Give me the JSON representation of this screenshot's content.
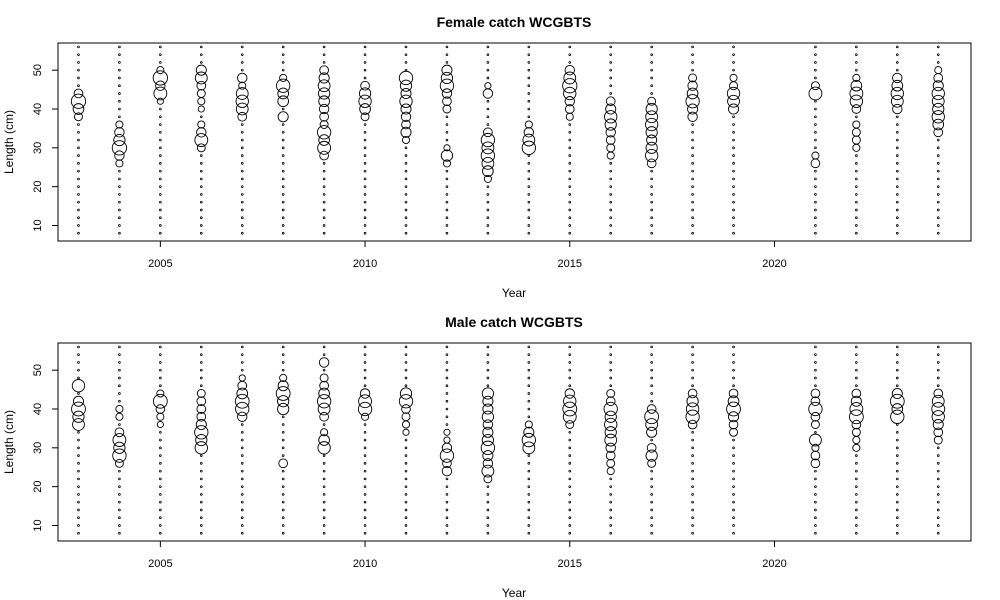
{
  "colors": {
    "ink": "#000000",
    "background": "#ffffff"
  },
  "chart_data": [
    {
      "type": "scatter",
      "subtype": "bubble",
      "title": "Female catch WCGBTS",
      "xlabel": "Year",
      "ylabel": "Length (cm)",
      "xlim": [
        2002.5,
        2024.8
      ],
      "ylim": [
        6,
        57
      ],
      "xticks": [
        2005,
        2010,
        2015,
        2020
      ],
      "yticks": [
        10,
        20,
        30,
        40,
        50
      ],
      "years": [
        2003,
        2004,
        2005,
        2006,
        2007,
        2008,
        2009,
        2010,
        2011,
        2012,
        2013,
        2014,
        2015,
        2016,
        2017,
        2018,
        2019,
        2021,
        2022,
        2023,
        2024
      ],
      "length_bins": [
        8,
        10,
        12,
        14,
        16,
        18,
        20,
        22,
        24,
        26,
        28,
        30,
        32,
        34,
        36,
        38,
        40,
        42,
        44,
        46,
        48,
        50,
        52,
        54,
        56
      ],
      "proportions": [
        {
          "year": 2003,
          "values": {
            "38": 0.25,
            "40": 0.45,
            "42": 0.8,
            "44": 0.3
          }
        },
        {
          "year": 2004,
          "values": {
            "26": 0.2,
            "28": 0.35,
            "30": 0.8,
            "32": 0.5,
            "34": 0.35,
            "36": 0.2
          }
        },
        {
          "year": 2005,
          "values": {
            "42": 0.15,
            "44": 0.65,
            "46": 0.35,
            "48": 0.8,
            "50": 0.2
          }
        },
        {
          "year": 2006,
          "values": {
            "30": 0.25,
            "32": 0.65,
            "34": 0.35,
            "36": 0.2,
            "40": 0.15,
            "42": 0.2,
            "44": 0.25,
            "46": 0.3,
            "48": 0.55,
            "50": 0.4
          }
        },
        {
          "year": 2007,
          "values": {
            "38": 0.3,
            "40": 0.55,
            "42": 0.6,
            "44": 0.55,
            "46": 0.2,
            "48": 0.35
          }
        },
        {
          "year": 2008,
          "values": {
            "38": 0.4,
            "42": 0.45,
            "44": 0.45,
            "46": 0.7,
            "48": 0.2
          }
        },
        {
          "year": 2009,
          "values": {
            "28": 0.3,
            "30": 0.65,
            "32": 0.45,
            "34": 0.7,
            "36": 0.25,
            "38": 0.3,
            "40": 0.35,
            "42": 0.45,
            "44": 0.5,
            "46": 0.55,
            "48": 0.4,
            "50": 0.3
          }
        },
        {
          "year": 2010,
          "values": {
            "38": 0.25,
            "40": 0.45,
            "42": 0.6,
            "44": 0.5,
            "46": 0.3
          }
        },
        {
          "year": 2011,
          "values": {
            "32": 0.2,
            "34": 0.4,
            "36": 0.3,
            "38": 0.35,
            "40": 0.4,
            "42": 0.6,
            "44": 0.4,
            "46": 0.5,
            "48": 0.7
          }
        },
        {
          "year": 2012,
          "values": {
            "26": 0.2,
            "28": 0.5,
            "30": 0.15,
            "40": 0.25,
            "42": 0.3,
            "44": 0.35,
            "46": 0.7,
            "48": 0.5,
            "50": 0.4
          }
        },
        {
          "year": 2013,
          "values": {
            "22": 0.2,
            "24": 0.45,
            "26": 0.55,
            "28": 0.7,
            "30": 0.55,
            "32": 0.7,
            "34": 0.3,
            "44": 0.35,
            "46": 0.15
          }
        },
        {
          "year": 2014,
          "values": {
            "30": 0.7,
            "32": 0.55,
            "34": 0.35,
            "36": 0.2
          }
        },
        {
          "year": 2015,
          "values": {
            "38": 0.2,
            "40": 0.3,
            "42": 0.35,
            "44": 0.6,
            "46": 0.8,
            "48": 0.55,
            "50": 0.35
          }
        },
        {
          "year": 2016,
          "values": {
            "28": 0.2,
            "30": 0.25,
            "32": 0.3,
            "34": 0.35,
            "36": 0.5,
            "38": 0.6,
            "40": 0.4,
            "42": 0.3
          }
        },
        {
          "year": 2017,
          "values": {
            "26": 0.3,
            "28": 0.6,
            "30": 0.5,
            "32": 0.4,
            "34": 0.5,
            "36": 0.6,
            "38": 0.55,
            "40": 0.5,
            "42": 0.25
          }
        },
        {
          "year": 2018,
          "values": {
            "38": 0.35,
            "40": 0.4,
            "42": 0.7,
            "44": 0.45,
            "46": 0.35,
            "48": 0.25
          }
        },
        {
          "year": 2019,
          "values": {
            "40": 0.4,
            "42": 0.55,
            "44": 0.6,
            "46": 0.25,
            "48": 0.2
          }
        },
        {
          "year": 2021,
          "values": {
            "26": 0.3,
            "28": 0.2,
            "44": 0.65,
            "46": 0.25
          }
        },
        {
          "year": 2022,
          "values": {
            "30": 0.2,
            "32": 0.25,
            "34": 0.25,
            "36": 0.2,
            "40": 0.3,
            "42": 0.6,
            "44": 0.65,
            "46": 0.45,
            "48": 0.2
          }
        },
        {
          "year": 2023,
          "values": {
            "40": 0.35,
            "42": 0.55,
            "44": 0.6,
            "46": 0.45,
            "48": 0.35
          }
        },
        {
          "year": 2024,
          "values": {
            "34": 0.3,
            "36": 0.45,
            "38": 0.6,
            "40": 0.5,
            "42": 0.55,
            "44": 0.6,
            "46": 0.4,
            "48": 0.3,
            "50": 0.2
          }
        }
      ]
    },
    {
      "type": "scatter",
      "subtype": "bubble",
      "title": "Male catch WCGBTS",
      "xlabel": "Year",
      "ylabel": "Length (cm)",
      "xlim": [
        2002.5,
        2024.8
      ],
      "ylim": [
        6,
        57
      ],
      "xticks": [
        2005,
        2010,
        2015,
        2020
      ],
      "yticks": [
        10,
        20,
        30,
        40,
        50
      ],
      "years": [
        2003,
        2004,
        2005,
        2006,
        2007,
        2008,
        2009,
        2010,
        2011,
        2012,
        2013,
        2014,
        2015,
        2016,
        2017,
        2018,
        2019,
        2021,
        2022,
        2023,
        2024
      ],
      "length_bins": [
        8,
        10,
        12,
        14,
        16,
        18,
        20,
        22,
        24,
        26,
        28,
        30,
        32,
        34,
        36,
        38,
        40,
        42,
        44,
        46,
        48,
        50,
        52,
        54,
        56
      ],
      "proportions": [
        {
          "year": 2003,
          "values": {
            "36": 0.55,
            "38": 0.5,
            "40": 0.75,
            "42": 0.4,
            "46": 0.6
          }
        },
        {
          "year": 2004,
          "values": {
            "26": 0.25,
            "28": 0.7,
            "30": 0.5,
            "32": 0.65,
            "34": 0.3,
            "38": 0.2,
            "40": 0.2
          }
        },
        {
          "year": 2005,
          "values": {
            "36": 0.15,
            "38": 0.2,
            "40": 0.3,
            "42": 0.75,
            "44": 0.2
          }
        },
        {
          "year": 2006,
          "values": {
            "30": 0.6,
            "32": 0.5,
            "34": 0.7,
            "36": 0.4,
            "38": 0.3,
            "40": 0.3,
            "42": 0.3,
            "44": 0.25
          }
        },
        {
          "year": 2007,
          "values": {
            "38": 0.35,
            "40": 0.7,
            "42": 0.75,
            "44": 0.45,
            "46": 0.3,
            "48": 0.15
          }
        },
        {
          "year": 2008,
          "values": {
            "26": 0.3,
            "40": 0.5,
            "42": 0.5,
            "44": 0.75,
            "46": 0.4,
            "48": 0.2
          }
        },
        {
          "year": 2009,
          "values": {
            "30": 0.6,
            "32": 0.45,
            "34": 0.2,
            "38": 0.3,
            "40": 0.55,
            "42": 0.7,
            "44": 0.45,
            "46": 0.3,
            "48": 0.25,
            "52": 0.35
          }
        },
        {
          "year": 2010,
          "values": {
            "38": 0.2,
            "40": 0.7,
            "42": 0.65,
            "44": 0.35
          }
        },
        {
          "year": 2011,
          "values": {
            "34": 0.15,
            "36": 0.2,
            "38": 0.25,
            "40": 0.3,
            "42": 0.7,
            "44": 0.5
          }
        },
        {
          "year": 2012,
          "values": {
            "24": 0.35,
            "26": 0.3,
            "28": 0.7,
            "30": 0.35,
            "32": 0.15,
            "34": 0.15
          }
        },
        {
          "year": 2013,
          "values": {
            "22": 0.25,
            "24": 0.55,
            "26": 0.35,
            "28": 0.4,
            "30": 0.7,
            "32": 0.5,
            "34": 0.4,
            "36": 0.35,
            "38": 0.5,
            "40": 0.4,
            "42": 0.4,
            "44": 0.5
          }
        },
        {
          "year": 2014,
          "values": {
            "30": 0.55,
            "32": 0.7,
            "34": 0.4,
            "36": 0.2
          }
        },
        {
          "year": 2015,
          "values": {
            "36": 0.25,
            "38": 0.65,
            "40": 0.75,
            "42": 0.6,
            "44": 0.35
          }
        },
        {
          "year": 2016,
          "values": {
            "24": 0.2,
            "26": 0.25,
            "28": 0.3,
            "30": 0.35,
            "32": 0.55,
            "34": 0.5,
            "36": 0.6,
            "38": 0.5,
            "40": 0.7,
            "42": 0.3,
            "44": 0.25
          }
        },
        {
          "year": 2017,
          "values": {
            "26": 0.25,
            "28": 0.5,
            "30": 0.3,
            "34": 0.4,
            "36": 0.55,
            "38": 0.75,
            "40": 0.3
          }
        },
        {
          "year": 2018,
          "values": {
            "36": 0.3,
            "38": 0.7,
            "40": 0.6,
            "42": 0.5,
            "44": 0.3
          }
        },
        {
          "year": 2019,
          "values": {
            "34": 0.25,
            "36": 0.3,
            "38": 0.4,
            "40": 0.75,
            "42": 0.45,
            "44": 0.3
          }
        },
        {
          "year": 2021,
          "values": {
            "26": 0.3,
            "28": 0.3,
            "30": 0.2,
            "32": 0.55,
            "36": 0.25,
            "38": 0.3,
            "40": 0.7,
            "42": 0.3,
            "44": 0.3
          }
        },
        {
          "year": 2022,
          "values": {
            "30": 0.2,
            "32": 0.2,
            "34": 0.25,
            "36": 0.3,
            "38": 0.75,
            "40": 0.65,
            "42": 0.4,
            "44": 0.3
          }
        },
        {
          "year": 2023,
          "values": {
            "38": 0.7,
            "40": 0.45,
            "42": 0.75,
            "44": 0.4
          }
        },
        {
          "year": 2024,
          "values": {
            "32": 0.25,
            "34": 0.3,
            "36": 0.4,
            "38": 0.6,
            "40": 0.65,
            "42": 0.55,
            "44": 0.3
          }
        }
      ]
    }
  ]
}
